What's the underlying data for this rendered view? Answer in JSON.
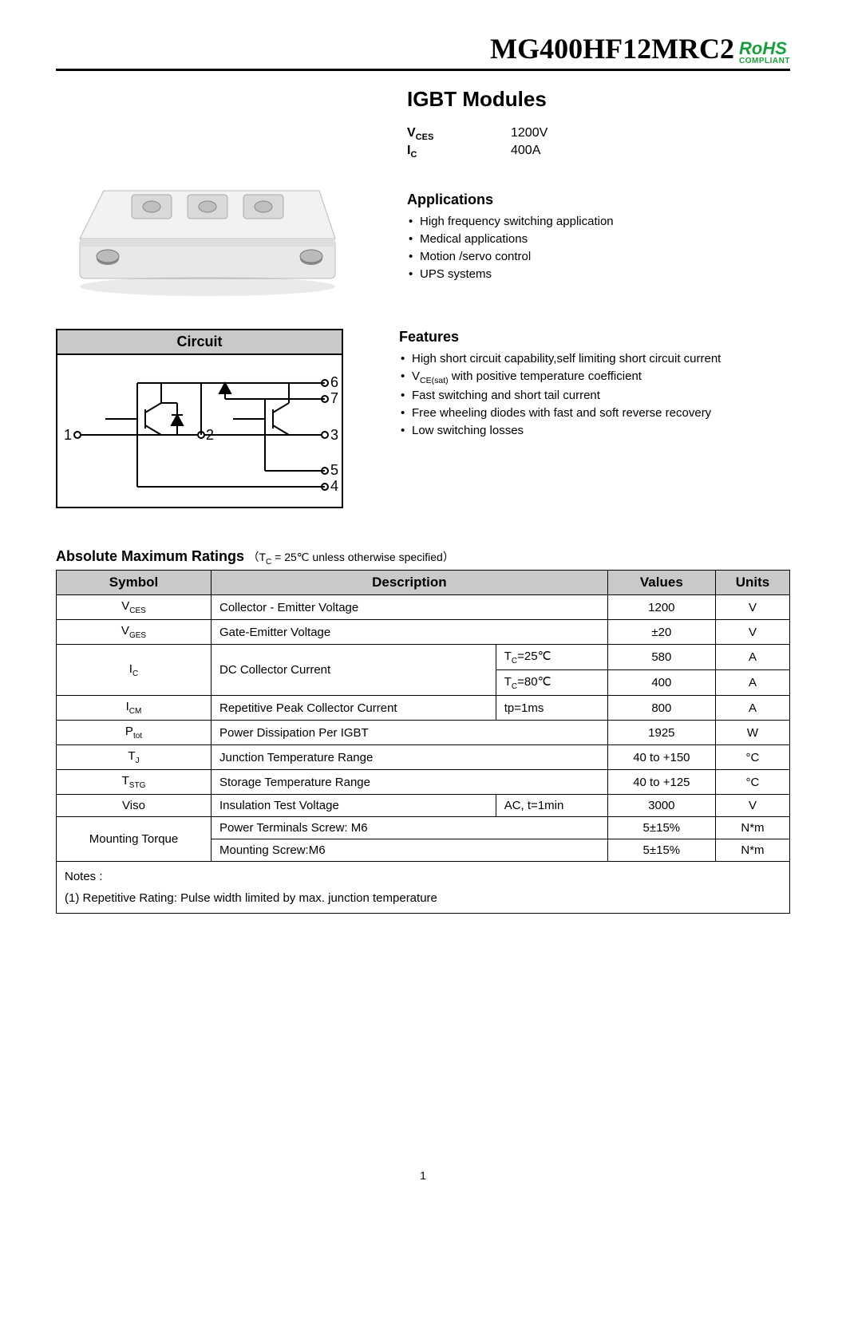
{
  "header": {
    "part_number": "MG400HF12MRC2",
    "rohs_top": "RoHS",
    "rohs_bottom": "COMPLIANT"
  },
  "module_title": "IGBT Modules",
  "key_specs": [
    {
      "label_main": "V",
      "label_sub": "CES",
      "value": "1200V"
    },
    {
      "label_main": "I",
      "label_sub": "C",
      "value": "400A"
    }
  ],
  "applications": {
    "title": "Applications",
    "items": [
      "High frequency switching application",
      "Medical applications",
      "Motion /servo control",
      "UPS systems"
    ]
  },
  "features": {
    "title": "Features",
    "items": [
      "High short circuit capability,self limiting short circuit current",
      "V_CE(sat) with positive temperature coefficient",
      "Fast switching and short tail current",
      "Free wheeling diodes with fast and soft reverse recovery",
      "Low switching losses"
    ]
  },
  "circuit": {
    "title": "Circuit",
    "terminals": [
      "1",
      "2",
      "3",
      "4",
      "5",
      "6",
      "7"
    ]
  },
  "ratings": {
    "title": "Absolute Maximum Ratings",
    "condition": "（T_C = 25℃ unless otherwise specified）",
    "columns": [
      "Symbol",
      "Description",
      "Values",
      "Units"
    ],
    "rows": [
      {
        "symbol_main": "V",
        "symbol_sub": "CES",
        "description": "Collector - Emitter Voltage",
        "cond": "",
        "value": "1200",
        "unit": "V",
        "rowspan": 1
      },
      {
        "symbol_main": "V",
        "symbol_sub": "GES",
        "description": "Gate-Emitter Voltage",
        "cond": "",
        "value": "±20",
        "unit": "V",
        "rowspan": 1
      },
      {
        "symbol_main": "I",
        "symbol_sub": "C",
        "description": "DC Collector Current",
        "cond": "T_C=25℃",
        "value": "580",
        "unit": "A",
        "rowspan": 2
      },
      {
        "symbol_main": "",
        "symbol_sub": "",
        "description": "",
        "cond": "T_C=80℃",
        "value": "400",
        "unit": "A",
        "rowspan": 0
      },
      {
        "symbol_main": "I",
        "symbol_sub": "CM",
        "description": "Repetitive Peak Collector Current",
        "cond": "tp=1ms",
        "value": "800",
        "unit": "A",
        "rowspan": 1
      },
      {
        "symbol_main": "P",
        "symbol_sub": "tot",
        "description": "Power Dissipation Per IGBT",
        "cond": "",
        "value": "1925",
        "unit": "W",
        "rowspan": 1
      },
      {
        "symbol_main": "T",
        "symbol_sub": "J",
        "description": "Junction Temperature Range",
        "cond": "",
        "value": "40 to +150",
        "unit": "°C",
        "rowspan": 1
      },
      {
        "symbol_main": "T",
        "symbol_sub": "STG",
        "description": "Storage Temperature Range",
        "cond": "",
        "value": "40 to +125",
        "unit": "°C",
        "rowspan": 1
      },
      {
        "symbol_main": "Viso",
        "symbol_sub": "",
        "description": "Insulation Test Voltage",
        "cond": "AC, t=1min",
        "value": "3000",
        "unit": "V",
        "rowspan": 1
      },
      {
        "symbol_main": "Mounting Torque",
        "symbol_sub": "",
        "description": "Power Terminals Screw: M6",
        "cond": "",
        "value": "5±15%",
        "unit": "N*m",
        "rowspan": 2
      },
      {
        "symbol_main": "",
        "symbol_sub": "",
        "description": "Mounting Screw:M6",
        "cond": "",
        "value": "5±15%",
        "unit": "N*m",
        "rowspan": 0
      }
    ],
    "notes_label": "Notes :",
    "notes_text": "(1) Repetitive Rating: Pulse width limited by max. junction temperature"
  },
  "page_number": "1",
  "colors": {
    "rohs_green": "#1a9e3b",
    "table_header_bg": "#c9c9c9",
    "border": "#000000",
    "text": "#000000",
    "module_body": "#eeeeee",
    "module_shadow": "#cccccc"
  }
}
